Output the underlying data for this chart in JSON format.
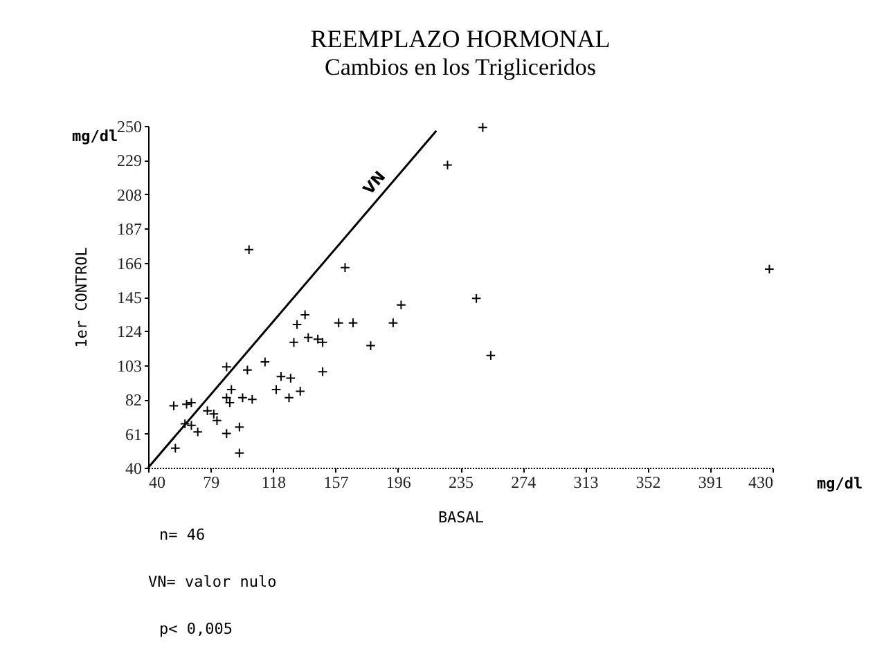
{
  "chart_data": {
    "type": "scatter",
    "title": "REEMPLAZO HORMONAL",
    "subtitle": "Cambios en los Trigliceridos",
    "xlabel": "BASAL",
    "ylabel": "1er CONTROL",
    "annotations": [
      "mg/dl",
      "mg/dl",
      "n= 46",
      "VN= valor nulo",
      "p< 0,005"
    ],
    "series": [
      {
        "type": "scatter",
        "color": "#000000",
        "marker": "cross",
        "x": [
          227,
          103,
          163,
          138,
          133,
          159,
          168,
          198,
          193,
          131,
          140,
          146,
          149,
          179,
          113,
          89,
          102,
          149,
          123,
          129,
          120,
          128,
          135,
          89,
          91,
          99,
          105,
          92,
          56,
          64,
          67,
          77,
          81,
          83,
          63,
          67,
          71,
          89,
          97,
          97,
          57,
          249,
          428,
          245,
          254
        ],
        "values": [
          226,
          174,
          163,
          134,
          128,
          129,
          129,
          140,
          129,
          117,
          120,
          119,
          117,
          115,
          105,
          102,
          100,
          99,
          96,
          95,
          88,
          83,
          87,
          83,
          80,
          83,
          82,
          88,
          78,
          79,
          80,
          75,
          73,
          69,
          67,
          66,
          62,
          61,
          65,
          49,
          52,
          249,
          162,
          144,
          109
        ]
      },
      {
        "type": "line",
        "name": "VN",
        "color": "#000000",
        "marker": "none",
        "x": [
          40,
          220
        ],
        "values": [
          40,
          247
        ]
      }
    ],
    "xlim": [
      40,
      430
    ],
    "xticks": [
      40,
      79,
      118,
      157,
      196,
      235,
      274,
      313,
      352,
      391,
      430
    ],
    "ylim": [
      40,
      250
    ],
    "yticks": [
      40,
      61,
      82,
      103,
      124,
      145,
      166,
      187,
      208,
      229,
      250
    ],
    "grid": false,
    "line_style": "solid"
  }
}
